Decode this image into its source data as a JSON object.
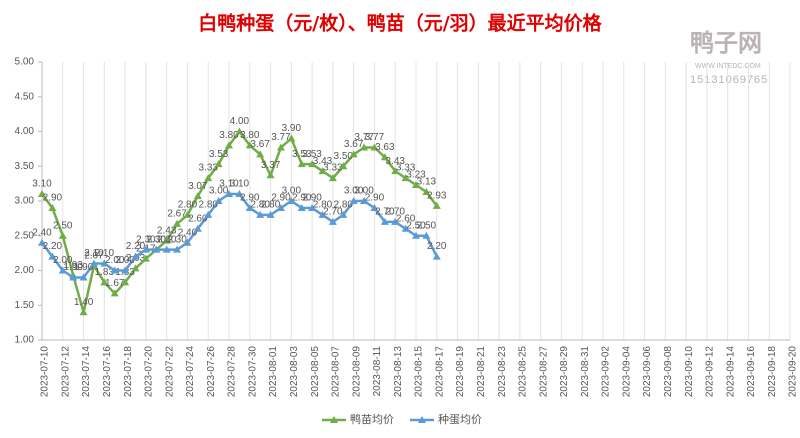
{
  "chart_data": {
    "type": "line",
    "title": "白鸭种蛋（元/枚）、鸭苗（元/羽）最近平均价格",
    "watermark": {
      "name": "鸭子网",
      "site": "WWW.INTEDC.COM",
      "phone": "15131069765"
    },
    "categories": [
      "2023-07-10",
      null,
      "2023-07-12",
      null,
      "2023-07-14",
      null,
      "2023-07-16",
      null,
      "2023-07-18",
      null,
      "2023-07-20",
      null,
      "2023-07-22",
      null,
      "2023-07-24",
      null,
      "2023-07-26",
      null,
      "2023-07-28",
      null,
      "2023-07-30",
      null,
      "2023-08-01",
      null,
      "2023-08-03",
      null,
      "2023-08-05",
      null,
      "2023-08-07",
      null,
      "2023-08-09",
      null,
      "2023-08-11",
      null,
      "2023-08-13",
      null,
      "2023-08-15",
      null,
      "2023-08-17",
      null,
      "2023-08-19",
      null,
      "2023-08-21",
      null,
      "2023-08-23",
      null,
      "2023-08-25",
      null,
      "2023-08-27",
      null,
      "2023-08-29",
      null,
      "2023-08-31",
      null,
      "2023-09-02",
      null,
      "2023-09-04",
      null,
      "2023-09-06",
      null,
      "2023-09-08",
      null,
      "2023-09-10",
      null,
      "2023-09-12",
      null,
      "2023-09-14",
      null,
      "2023-09-16",
      null,
      "2023-09-18",
      null,
      "2023-09-20"
    ],
    "series": [
      {
        "name": "鸭苗均价",
        "color": "#70ad47",
        "values": [
          3.1,
          2.9,
          2.5,
          1.93,
          1.4,
          2.07,
          1.83,
          1.67,
          1.83,
          2.03,
          2.17,
          2.3,
          2.43,
          2.67,
          2.8,
          3.07,
          3.33,
          3.53,
          3.8,
          4.0,
          3.8,
          3.67,
          3.37,
          3.77,
          3.9,
          3.53,
          3.53,
          3.43,
          3.33,
          3.5,
          3.67,
          3.77,
          3.77,
          3.63,
          3.43,
          3.33,
          3.23,
          3.13,
          2.93,
          null,
          null,
          null,
          null,
          null,
          null,
          null,
          null,
          null,
          null,
          null,
          null,
          null,
          null,
          null,
          null,
          null,
          null,
          null,
          null,
          null,
          null,
          null,
          null,
          null,
          null,
          null,
          null,
          null,
          null,
          null,
          null,
          null,
          null
        ],
        "value_labels": [
          "3.10",
          "2.90",
          "2.50",
          "1.93",
          "1.40",
          "2.07",
          "1.83",
          "1.67",
          "1.83",
          "2.03",
          "2.17",
          "2.30",
          "2.43",
          "2.67",
          "2.80",
          "3.07",
          "3.33",
          "3.53",
          "3.80",
          "4.00",
          "3.80",
          "3.67",
          "3.37",
          "3.77",
          "3.90",
          "3.53",
          "3.53",
          "3.43",
          "3.33",
          "3.50",
          "3.67",
          "3.77",
          "3.77",
          "3.63",
          "3.43",
          "3.33",
          "3.23",
          "3.13",
          "2.93",
          null,
          null,
          null,
          null,
          null,
          null,
          null,
          null,
          null,
          null,
          null,
          null,
          null,
          null,
          null,
          null,
          null,
          null,
          null,
          null,
          null,
          null,
          null,
          null,
          null,
          null,
          null,
          null,
          null,
          null,
          null,
          null,
          null,
          null
        ]
      },
      {
        "name": "种蛋均价",
        "color": "#5b9bd5",
        "values": [
          2.4,
          2.2,
          2.0,
          1.9,
          1.9,
          2.1,
          2.1,
          2.0,
          2.0,
          2.2,
          2.3,
          2.3,
          2.3,
          2.3,
          2.4,
          2.6,
          2.8,
          3.0,
          3.1,
          3.1,
          2.9,
          2.8,
          2.8,
          2.9,
          3.0,
          2.9,
          2.9,
          2.8,
          2.7,
          2.8,
          3.0,
          3.0,
          2.9,
          2.7,
          2.7,
          2.6,
          2.5,
          2.5,
          2.2,
          null,
          null,
          null,
          null,
          null,
          null,
          null,
          null,
          null,
          null,
          null,
          null,
          null,
          null,
          null,
          null,
          null,
          null,
          null,
          null,
          null,
          null,
          null,
          null,
          null,
          null,
          null,
          null,
          null,
          null,
          null,
          null,
          null,
          null
        ],
        "value_labels": [
          "2.40",
          "2.20",
          "2.00",
          "1.90",
          "1.90",
          "2.10",
          "2.10",
          "2.00",
          "2.00",
          "2.20",
          "2.30",
          "2.30",
          "2.30",
          "2.30",
          "2.40",
          "2.60",
          "2.80",
          "3.00",
          "3.10",
          "3.10",
          "2.90",
          "2.80",
          "2.80",
          "2.90",
          "3.00",
          "2.90",
          "2.90",
          "2.80",
          "2.70",
          "2.80",
          "3.00",
          "3.00",
          "2.90",
          "2.70",
          "2.70",
          "2.60",
          "2.50",
          "2.50",
          "2.20",
          null,
          null,
          null,
          null,
          null,
          null,
          null,
          null,
          null,
          null,
          null,
          null,
          null,
          null,
          null,
          null,
          null,
          null,
          null,
          null,
          null,
          null,
          null,
          null,
          null,
          null,
          null,
          null,
          null,
          null,
          null,
          null,
          null,
          null
        ]
      }
    ],
    "ylim": [
      1,
      5
    ],
    "yticks": [
      {
        "value": 1,
        "label": "1.00"
      },
      {
        "value": 1.5,
        "label": "1.50"
      },
      {
        "value": 2,
        "label": "2.00"
      },
      {
        "value": 2.5,
        "label": "2.50"
      },
      {
        "value": 3,
        "label": "3.00"
      },
      {
        "value": 3.5,
        "label": "3.50"
      },
      {
        "value": 4,
        "label": "4.00"
      },
      {
        "value": 4.5,
        "label": "4.50"
      },
      {
        "value": 5,
        "label": "5.00"
      }
    ],
    "grid": "x",
    "legend": "bottom"
  }
}
